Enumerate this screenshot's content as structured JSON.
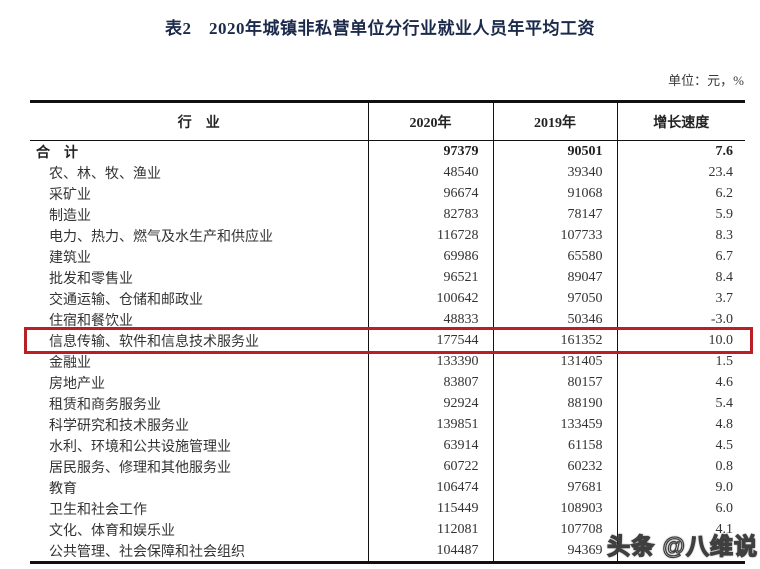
{
  "title": "表2　2020年城镇非私营单位分行业就业人员年平均工资",
  "unit_label": "单位：元，%",
  "table": {
    "headers": [
      "行　业",
      "2020年",
      "2019年",
      "增长速度"
    ],
    "rows": [
      {
        "industry": "合　计",
        "y2020": "97379",
        "y2019": "90501",
        "growth": "7.6",
        "total": true
      },
      {
        "industry": "农、林、牧、渔业",
        "y2020": "48540",
        "y2019": "39340",
        "growth": "23.4"
      },
      {
        "industry": "采矿业",
        "y2020": "96674",
        "y2019": "91068",
        "growth": "6.2"
      },
      {
        "industry": "制造业",
        "y2020": "82783",
        "y2019": "78147",
        "growth": "5.9"
      },
      {
        "industry": "电力、热力、燃气及水生产和供应业",
        "y2020": "116728",
        "y2019": "107733",
        "growth": "8.3"
      },
      {
        "industry": "建筑业",
        "y2020": "69986",
        "y2019": "65580",
        "growth": "6.7"
      },
      {
        "industry": "批发和零售业",
        "y2020": "96521",
        "y2019": "89047",
        "growth": "8.4"
      },
      {
        "industry": "交通运输、仓储和邮政业",
        "y2020": "100642",
        "y2019": "97050",
        "growth": "3.7"
      },
      {
        "industry": "住宿和餐饮业",
        "y2020": "48833",
        "y2019": "50346",
        "growth": "-3.0"
      },
      {
        "industry": "信息传输、软件和信息技术服务业",
        "y2020": "177544",
        "y2019": "161352",
        "growth": "10.0",
        "highlighted": true
      },
      {
        "industry": "金融业",
        "y2020": "133390",
        "y2019": "131405",
        "growth": "1.5"
      },
      {
        "industry": "房地产业",
        "y2020": "83807",
        "y2019": "80157",
        "growth": "4.6"
      },
      {
        "industry": "租赁和商务服务业",
        "y2020": "92924",
        "y2019": "88190",
        "growth": "5.4"
      },
      {
        "industry": "科学研究和技术服务业",
        "y2020": "139851",
        "y2019": "133459",
        "growth": "4.8"
      },
      {
        "industry": "水利、环境和公共设施管理业",
        "y2020": "63914",
        "y2019": "61158",
        "growth": "4.5"
      },
      {
        "industry": "居民服务、修理和其他服务业",
        "y2020": "60722",
        "y2019": "60232",
        "growth": "0.8"
      },
      {
        "industry": "教育",
        "y2020": "106474",
        "y2019": "97681",
        "growth": "9.0"
      },
      {
        "industry": "卫生和社会工作",
        "y2020": "115449",
        "y2019": "108903",
        "growth": "6.0"
      },
      {
        "industry": "文化、体育和娱乐业",
        "y2020": "112081",
        "y2019": "107708",
        "growth": "4.1"
      },
      {
        "industry": "公共管理、社会保障和社会组织",
        "y2020": "104487",
        "y2019": "94369",
        "growth": ""
      }
    ]
  },
  "watermark": "头条 @八维说",
  "colors": {
    "title_text": "#1b2a4a",
    "highlight_border": "#b92025"
  }
}
